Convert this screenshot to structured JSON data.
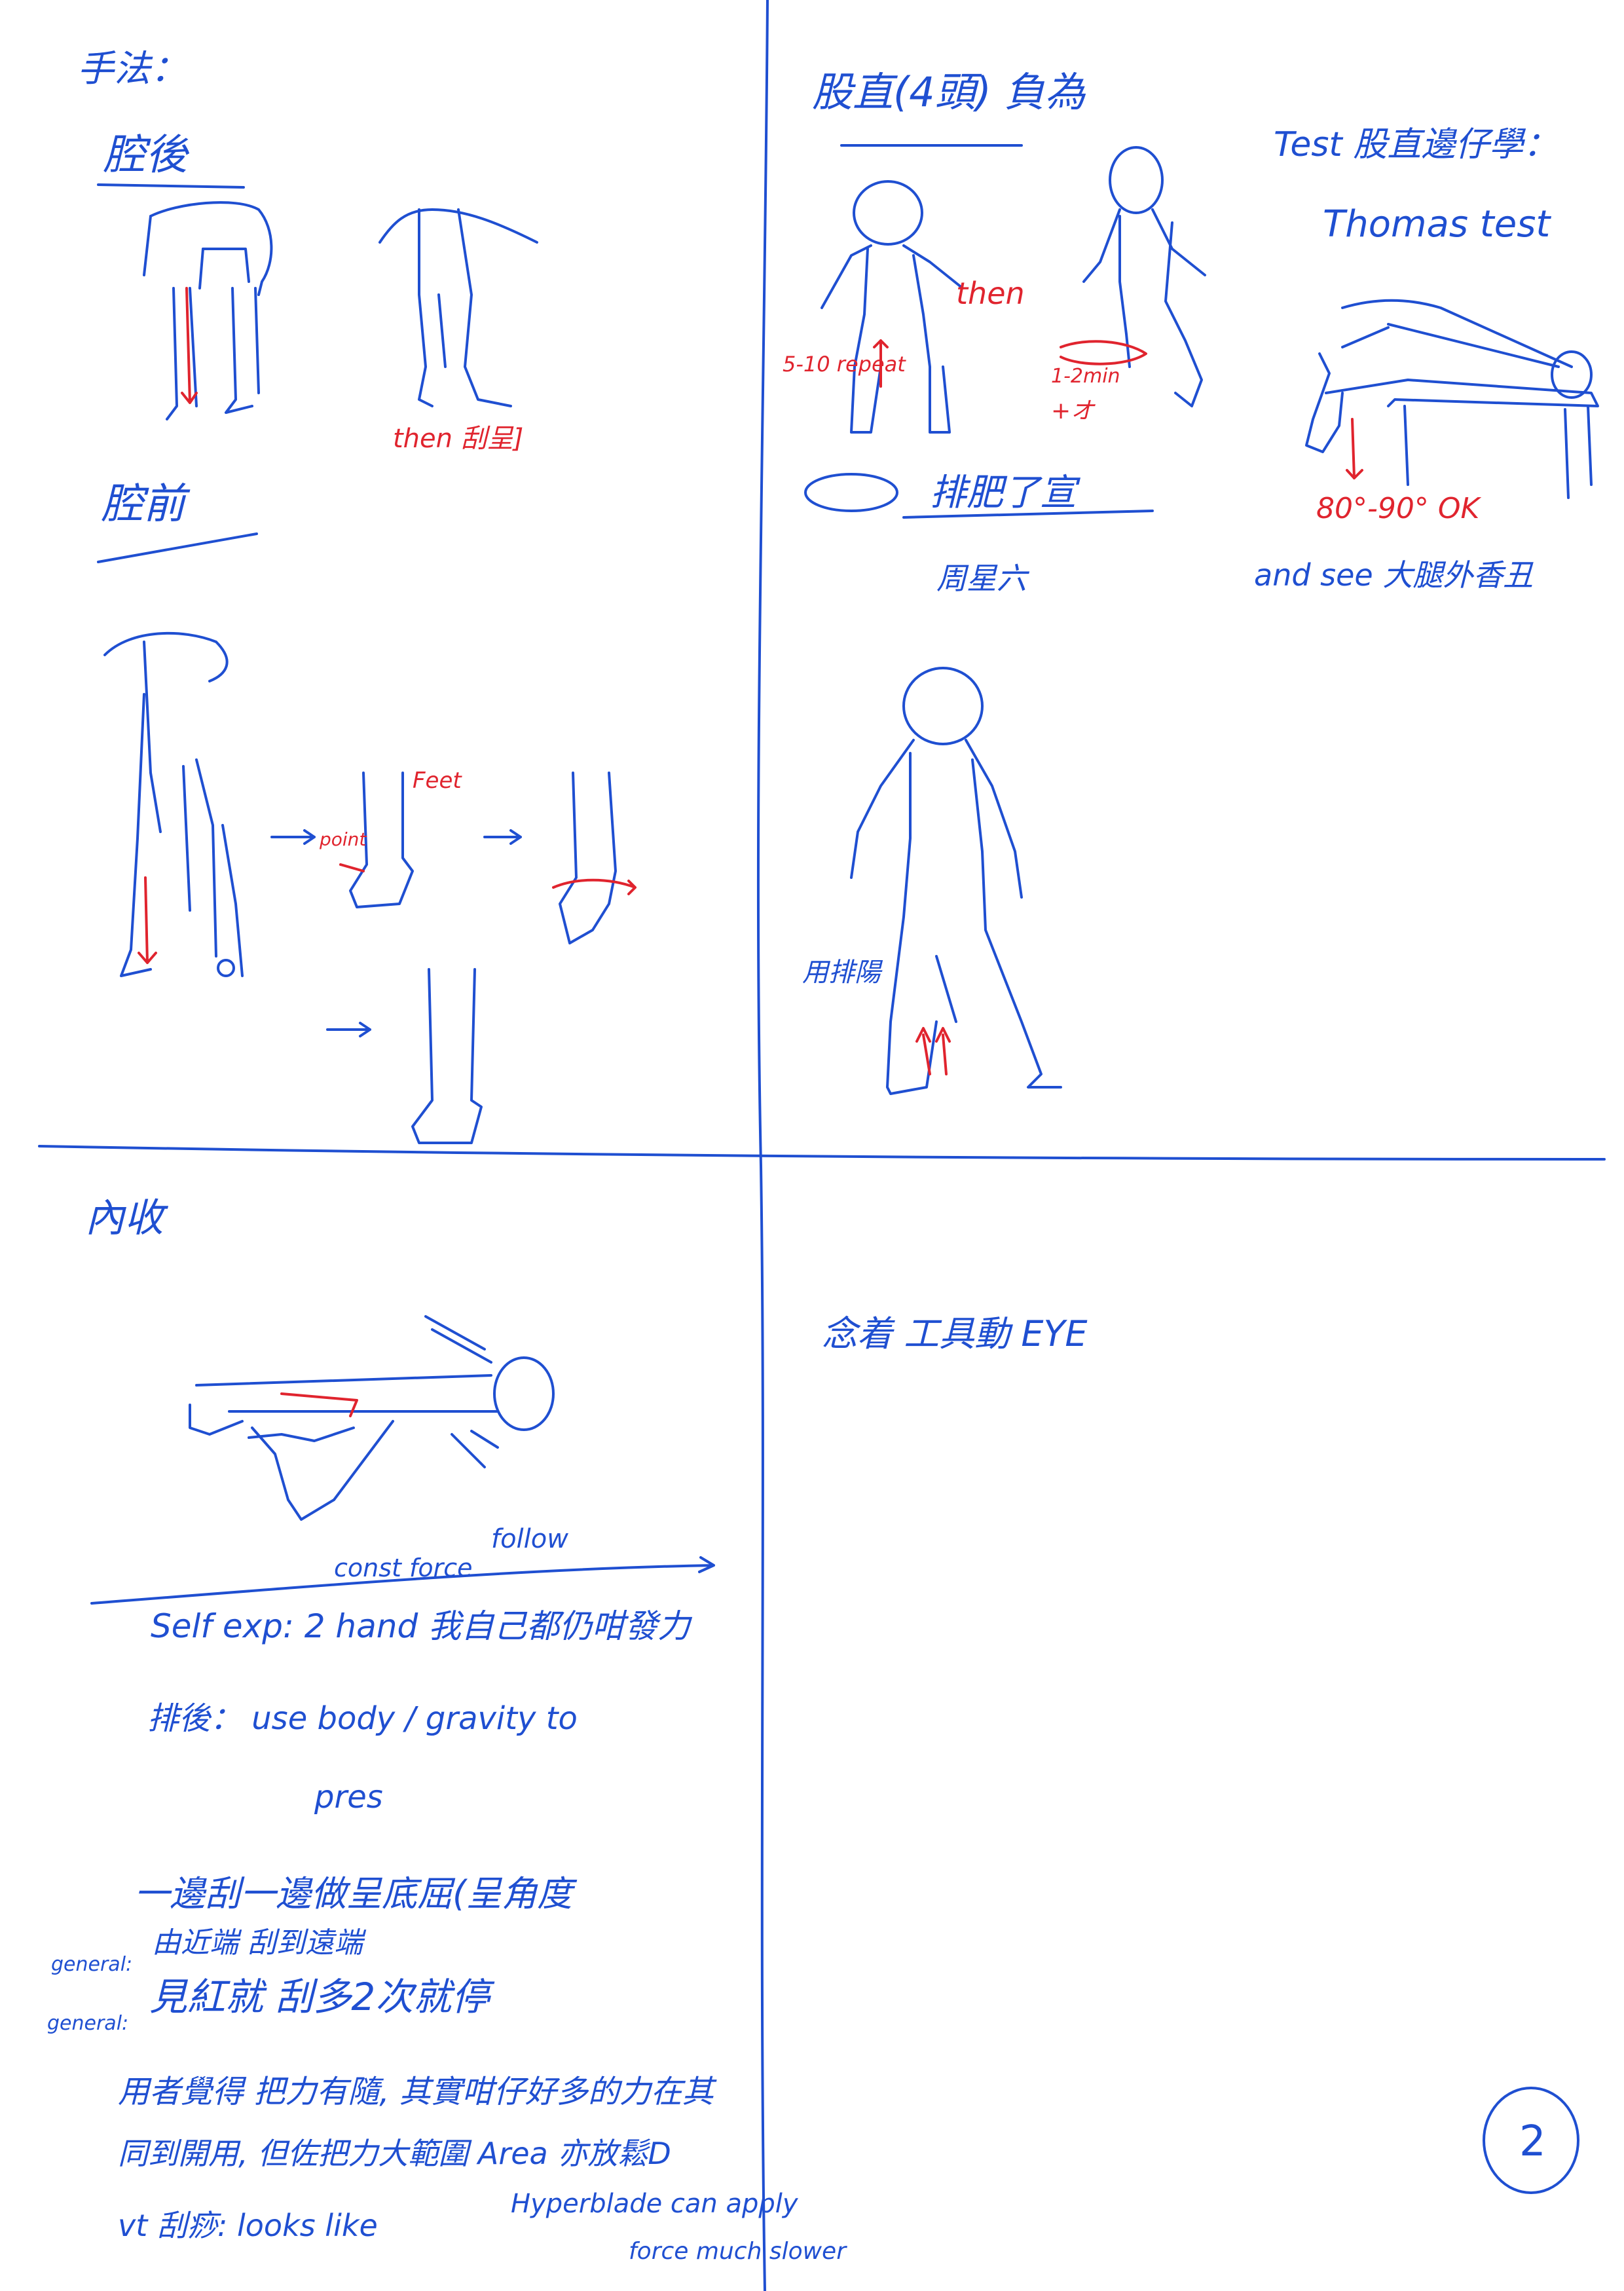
{
  "page_number": "2",
  "top_left": {
    "heading": "手法：",
    "calf_back": "腔後",
    "calf_back_note": "then 刮呈]",
    "calf_front": "腔前",
    "front_annot_1": "Feet",
    "front_annot_2": "point"
  },
  "top_right": {
    "heading": "股直(4頭) 負為",
    "then": "then",
    "range_left": "5-10 repeat",
    "range_right": "1-2min",
    "range_right_2": "+オ",
    "lateral": "排肥了宣",
    "lateral_sub": "周星六",
    "test_heading": "Test 股直邊仔學：",
    "thomas": "Thomas test",
    "thomas_angle": "80°-90° OK",
    "and_see": "and see 大腿外香丑",
    "posture_label": "用排陽"
  },
  "bottom_left": {
    "heading": "內收",
    "const_force": "const force",
    "follow": "follow",
    "self_exp": "Self exp: 2 hand 我自己都仍咁發力",
    "paixiao": "排後： use body / gravity to",
    "press": "pres",
    "line1": "一邊刮一邊做呈底屈(呈角度",
    "general1_label": "general:",
    "general1_text": "由近端 刮到遠端",
    "general2_label": "general:",
    "general2_text": "見紅就 刮多2次就停",
    "line4": "用者覺得 把力有隨, 其實咁仔好多的力在其",
    "line5": "同到開用, 但佐把力大範圍 Area 亦放鬆D",
    "vt": "vt 刮痧: looks like",
    "hyperblade": "Hyperblade can apply",
    "hyperblade_2": "force much slower"
  },
  "bottom_right": {
    "note": "念着 工具動 EYE"
  }
}
